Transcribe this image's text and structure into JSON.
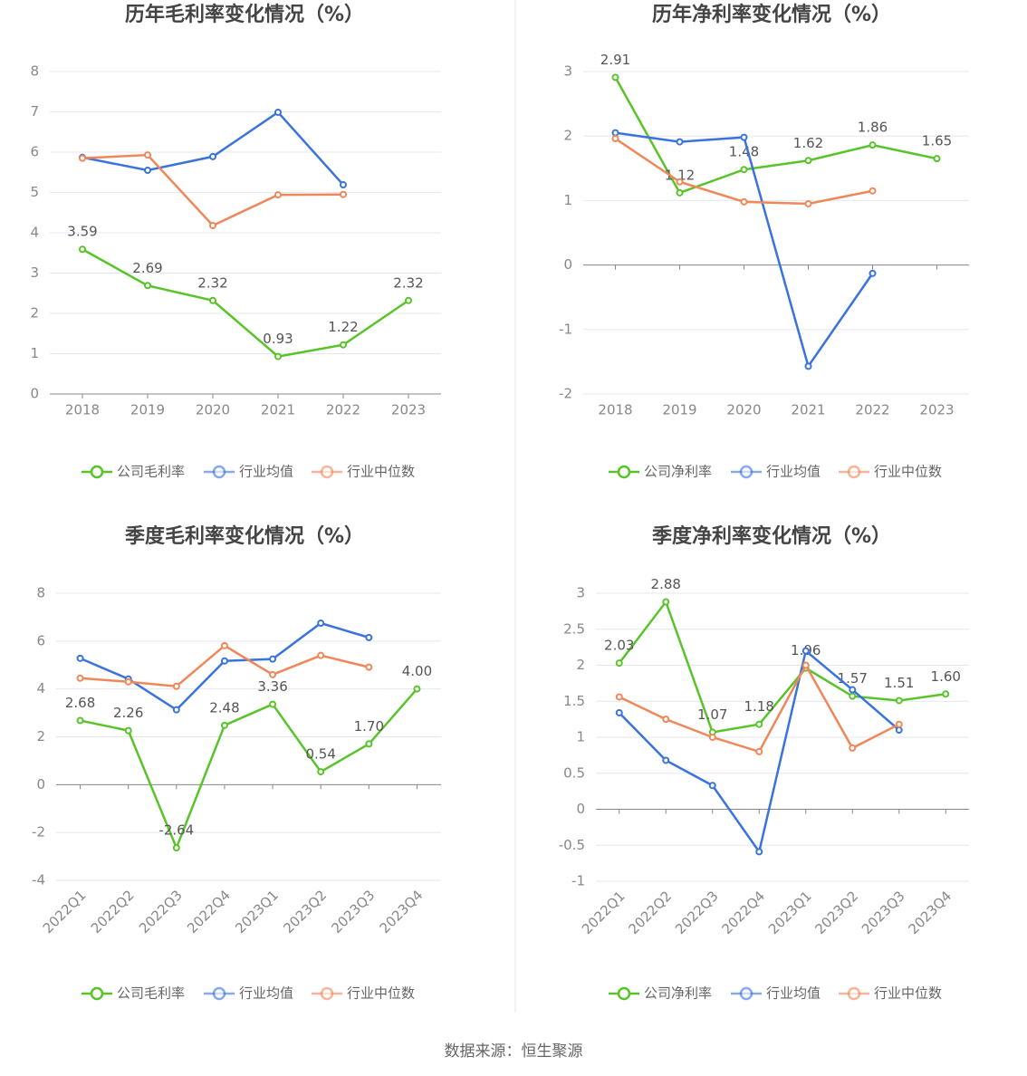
{
  "chart_data": [
    {
      "type": "line",
      "title": "历年毛利率变化情况（%）",
      "categories": [
        "2018",
        "2019",
        "2020",
        "2021",
        "2022",
        "2023"
      ],
      "series": [
        {
          "name": "公司毛利率",
          "color": "#58c42a",
          "values": [
            3.59,
            2.69,
            2.32,
            0.93,
            1.22,
            2.32
          ],
          "value_labels": [
            "3.59",
            "2.69",
            "2.32",
            "0.93",
            "1.22",
            "2.32"
          ]
        },
        {
          "name": "行业均值",
          "color": "#3a73dc",
          "values": [
            5.87,
            5.55,
            5.89,
            6.99,
            5.19,
            null
          ]
        },
        {
          "name": "行业中位数",
          "color": "#f0875a",
          "values": [
            5.85,
            5.93,
            4.18,
            4.94,
            4.95,
            null
          ]
        }
      ],
      "ylim": [
        0,
        8
      ],
      "yticks": [
        0,
        1,
        2,
        3,
        4,
        5,
        6,
        7,
        8
      ],
      "grid": true
    },
    {
      "type": "line",
      "title": "历年净利率变化情况（%）",
      "categories": [
        "2018",
        "2019",
        "2020",
        "2021",
        "2022",
        "2023"
      ],
      "series": [
        {
          "name": "公司净利率",
          "color": "#58c42a",
          "values": [
            2.91,
            1.12,
            1.48,
            1.62,
            1.86,
            1.65
          ],
          "value_labels": [
            "2.91",
            "1.12",
            "1.48",
            "1.62",
            "1.86",
            "1.65"
          ]
        },
        {
          "name": "行业均值",
          "color": "#3a73dc",
          "values": [
            2.05,
            1.91,
            1.98,
            -1.57,
            -0.13,
            null
          ]
        },
        {
          "name": "行业中位数",
          "color": "#f0875a",
          "values": [
            1.96,
            1.29,
            0.98,
            0.95,
            1.15,
            null
          ]
        }
      ],
      "ylim": [
        -2,
        3
      ],
      "yticks": [
        -2,
        -1,
        0,
        1,
        2,
        3
      ],
      "grid": true
    },
    {
      "type": "line",
      "title": "季度毛利率变化情况（%）",
      "categories": [
        "2022Q1",
        "2022Q2",
        "2022Q3",
        "2022Q4",
        "2023Q1",
        "2023Q2",
        "2023Q3",
        "2023Q4"
      ],
      "series": [
        {
          "name": "公司毛利率",
          "color": "#58c42a",
          "values": [
            2.68,
            2.26,
            -2.64,
            2.48,
            3.36,
            0.54,
            1.7,
            4.0
          ],
          "value_labels": [
            "2.68",
            "2.26",
            "-2.64",
            "2.48",
            "3.36",
            "0.54",
            "1.70",
            "4.00"
          ]
        },
        {
          "name": "行业均值",
          "color": "#3a73dc",
          "values": [
            5.28,
            4.42,
            3.13,
            5.17,
            5.25,
            6.75,
            6.15,
            null
          ]
        },
        {
          "name": "行业中位数",
          "color": "#f0875a",
          "values": [
            4.45,
            4.3,
            4.11,
            5.81,
            4.6,
            5.4,
            4.91,
            null
          ]
        }
      ],
      "ylim": [
        -4,
        8
      ],
      "yticks": [
        -4,
        -2,
        0,
        2,
        4,
        6,
        8
      ],
      "grid": true
    },
    {
      "type": "line",
      "title": "季度净利率变化情况（%）",
      "categories": [
        "2022Q1",
        "2022Q2",
        "2022Q3",
        "2022Q4",
        "2023Q1",
        "2023Q2",
        "2023Q3",
        "2023Q4"
      ],
      "series": [
        {
          "name": "公司净利率",
          "color": "#58c42a",
          "values": [
            2.03,
            2.88,
            1.07,
            1.18,
            1.96,
            1.57,
            1.51,
            1.6
          ],
          "value_labels": [
            "2.03",
            "2.88",
            "1.07",
            "1.18",
            "1.96",
            "1.57",
            "1.51",
            "1.60"
          ]
        },
        {
          "name": "行业均值",
          "color": "#3a73dc",
          "values": [
            1.34,
            0.68,
            0.33,
            -0.59,
            2.2,
            1.66,
            1.1,
            null
          ]
        },
        {
          "name": "行业中位数",
          "color": "#f0875a",
          "values": [
            1.56,
            1.25,
            1.0,
            0.8,
            2.0,
            0.85,
            1.18,
            null
          ]
        }
      ],
      "ylim": [
        -1,
        3
      ],
      "yticks": [
        -1,
        -0.5,
        0,
        0.5,
        1,
        1.5,
        2,
        2.5,
        3
      ],
      "grid": true
    }
  ],
  "source": "数据来源：恒生聚源"
}
